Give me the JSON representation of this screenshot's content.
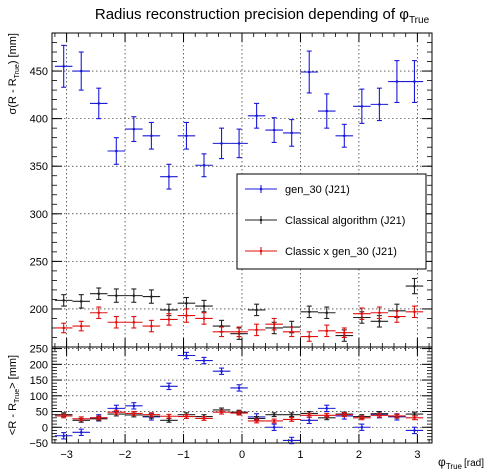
{
  "chart_data": {
    "type": "scatter",
    "title": "Radius reconstruction precision depending of φ",
    "title_subscript": "True",
    "xlabel": "φ",
    "xlabel_subscript": "True",
    "xlabel_unit": "[rad]",
    "xlim": [
      -3.25,
      3.25
    ],
    "x_ticks": [
      "−3",
      "−2",
      "−1",
      "0",
      "1",
      "2",
      "3"
    ],
    "top_panel": {
      "ylabel": "σ(R - R",
      "ylabel_subscript": "True",
      "ylabel_unit": ") [mm]",
      "ylim": [
        160,
        490
      ],
      "y_ticks": [
        "200",
        "250",
        "300",
        "350",
        "400",
        "450"
      ],
      "grid": true,
      "legend": {
        "placement": "middle-right",
        "entries": [
          "gen_30 (J21)",
          "Classical algorithm (J21)",
          "Classic x gen_30 (J21)"
        ]
      },
      "series": [
        {
          "name": "gen_30 (J21)",
          "color": "#1a1ad8",
          "x": [
            -3.05,
            -2.75,
            -2.45,
            -2.15,
            -1.85,
            -1.55,
            -1.25,
            -0.95,
            -0.65,
            -0.35,
            -0.05,
            0.25,
            0.55,
            0.85,
            1.15,
            1.45,
            1.75,
            2.05,
            2.35,
            2.65,
            2.95
          ],
          "y": [
            455,
            450,
            416,
            366,
            389,
            382,
            339,
            382,
            351,
            374,
            374,
            403,
            388,
            385,
            449,
            408,
            382,
            413,
            415,
            439,
            439
          ],
          "yerr": [
            22,
            20,
            16,
            14,
            13,
            14,
            13,
            14,
            12,
            16,
            15,
            13,
            13,
            14,
            22,
            18,
            12,
            18,
            17,
            22,
            22
          ]
        },
        {
          "name": "Classical algorithm (J21)",
          "color": "#222222",
          "x": [
            -3.05,
            -2.75,
            -2.45,
            -2.15,
            -1.85,
            -1.55,
            -1.25,
            -0.95,
            -0.65,
            -0.35,
            -0.05,
            0.25,
            0.55,
            0.85,
            1.15,
            1.45,
            1.75,
            2.05,
            2.35,
            2.65,
            2.95
          ],
          "y": [
            209,
            208,
            216,
            214,
            214,
            213,
            199,
            206,
            203,
            182,
            174,
            199,
            180,
            181,
            197,
            196,
            172,
            191,
            187,
            198,
            224
          ],
          "yerr": [
            6,
            7,
            6,
            7,
            7,
            7,
            6,
            6,
            6,
            6,
            6,
            6,
            6,
            6,
            6,
            6,
            6,
            6,
            6,
            7,
            8
          ]
        },
        {
          "name": "Classic x gen_30 (J21)",
          "color": "#e01010",
          "x": [
            -3.05,
            -2.75,
            -2.45,
            -2.15,
            -1.85,
            -1.55,
            -1.25,
            -0.95,
            -0.65,
            -0.35,
            -0.05,
            0.25,
            0.55,
            0.85,
            1.15,
            1.45,
            1.75,
            2.05,
            2.35,
            2.65,
            2.95
          ],
          "y": [
            180,
            182,
            196,
            186,
            186,
            182,
            189,
            193,
            190,
            176,
            176,
            178,
            184,
            176,
            171,
            177,
            175,
            195,
            196,
            192,
            197
          ],
          "yerr": [
            5,
            5,
            6,
            6,
            6,
            6,
            6,
            7,
            6,
            5,
            5,
            6,
            6,
            5,
            5,
            6,
            5,
            6,
            6,
            6,
            6
          ]
        }
      ]
    },
    "bottom_panel": {
      "ylabel": "<R - R",
      "ylabel_subscript": "True",
      "ylabel_unit": "> [mm]",
      "ylim": [
        -50,
        255
      ],
      "y_ticks": [
        "−50",
        "0",
        "50",
        "100",
        "150",
        "200",
        "250"
      ],
      "grid": true,
      "series": [
        {
          "name": "gen_30 (J21)",
          "color": "#1a1ad8",
          "x": [
            -3.05,
            -2.75,
            -2.45,
            -2.15,
            -1.85,
            -1.55,
            -1.25,
            -0.95,
            -0.65,
            -0.35,
            -0.05,
            0.25,
            0.55,
            0.85,
            1.15,
            1.45,
            1.75,
            2.05,
            2.35,
            2.65,
            2.95
          ],
          "y": [
            -27,
            -16,
            30,
            60,
            68,
            33,
            130,
            228,
            212,
            178,
            125,
            33,
            0,
            -42,
            22,
            60,
            36,
            0,
            40,
            33,
            -10
          ],
          "yerr": [
            10,
            10,
            10,
            10,
            10,
            10,
            10,
            10,
            10,
            10,
            10,
            10,
            10,
            10,
            10,
            10,
            10,
            10,
            10,
            10,
            10
          ]
        },
        {
          "name": "Classical algorithm (J21)",
          "color": "#222222",
          "x": [
            -3.05,
            -2.75,
            -2.45,
            -2.15,
            -1.85,
            -1.55,
            -1.25,
            -0.95,
            -0.65,
            -0.35,
            -0.05,
            0.25,
            0.55,
            0.85,
            1.15,
            1.45,
            1.75,
            2.05,
            2.35,
            2.65,
            2.95
          ],
          "y": [
            40,
            22,
            27,
            42,
            39,
            35,
            22,
            40,
            34,
            55,
            48,
            28,
            40,
            40,
            44,
            30,
            42,
            34,
            43,
            35,
            42
          ],
          "yerr": [
            6,
            6,
            6,
            6,
            6,
            6,
            6,
            6,
            6,
            6,
            6,
            6,
            6,
            6,
            6,
            6,
            6,
            6,
            6,
            6,
            6
          ]
        },
        {
          "name": "Classic x gen_30 (J21)",
          "color": "#e01010",
          "x": [
            -3.05,
            -2.75,
            -2.45,
            -2.15,
            -1.85,
            -1.55,
            -1.25,
            -0.95,
            -0.65,
            -0.35,
            -0.05,
            0.25,
            0.55,
            0.85,
            1.15,
            1.45,
            1.75,
            2.05,
            2.35,
            2.65,
            2.95
          ],
          "y": [
            36,
            27,
            30,
            48,
            44,
            40,
            35,
            34,
            28,
            48,
            45,
            20,
            20,
            25,
            38,
            38,
            40,
            30,
            38,
            36,
            30
          ],
          "yerr": [
            6,
            6,
            6,
            6,
            6,
            6,
            6,
            6,
            6,
            6,
            6,
            6,
            6,
            6,
            6,
            6,
            6,
            6,
            6,
            6,
            6
          ]
        }
      ]
    }
  }
}
